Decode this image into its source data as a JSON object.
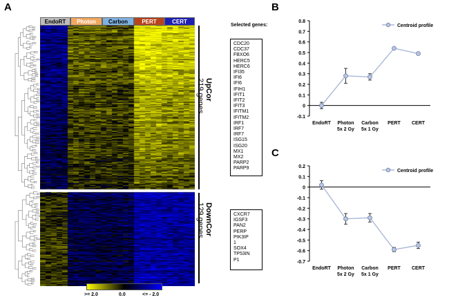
{
  "panels": {
    "a": "A",
    "b": "B",
    "c": "C"
  },
  "heatmap": {
    "groups": [
      {
        "label": "EndoRT",
        "color": "#bdbdbd",
        "text_color": "#000000"
      },
      {
        "label": "Photon",
        "color": "#f0a860",
        "text_color": "#ffffff"
      },
      {
        "label": "Carbon",
        "color": "#7fb2e0",
        "text_color": "#000000"
      },
      {
        "label": "PERT",
        "color": "#b8441c",
        "text_color": "#ffffff"
      },
      {
        "label": "CERT",
        "color": "#1f1fb0",
        "text_color": "#ffffff"
      }
    ],
    "selected_title": "Selected genes:",
    "upcor": {
      "name": "UpCor",
      "count": "219 genes",
      "genes": [
        "CDC20",
        "CDC37",
        "FBXO6",
        "HERC5",
        "HERC6",
        "IFI35",
        "IFI6",
        "IFI6",
        "IFIH1",
        "IFIT1",
        "IFIT2",
        "IFIT3",
        "IFITM1",
        "IFITM2",
        "IRF1",
        "IRF7",
        "IRF7",
        "ISG15",
        "ISG20",
        "MX1",
        "MX2",
        "PARP2",
        "PARP9"
      ]
    },
    "downcor": {
      "name": "DownCor",
      "count": "129 genes",
      "genes": [
        "CXCR7",
        "IGSF3",
        "PAN2",
        "PERP",
        "PIK3IP",
        "1",
        "SOX4",
        "TP53IN",
        "P1"
      ]
    },
    "legend": {
      "high": ">= 2.0",
      "mid": "0.0",
      "low": "<= - 2.0",
      "colors": {
        "high": "#ffff00",
        "mid": "#000000",
        "low": "#0000ff"
      }
    }
  },
  "chart_data": [
    {
      "type": "line",
      "panel": "B",
      "categories": [
        "EndoRT",
        "Photon 5x 2 Gy",
        "Carbon 5x 1 Gy",
        "PERT",
        "CERT"
      ],
      "category_lines": [
        [
          "EndoRT"
        ],
        [
          "Photon",
          "5x 2 Gy"
        ],
        [
          "Carbon",
          "5x 1 Gy"
        ],
        [
          "PERT"
        ],
        [
          "CERT"
        ]
      ],
      "series": [
        {
          "name": "Centroid profile",
          "values": [
            0.0,
            0.28,
            0.27,
            0.54,
            0.49
          ],
          "errors": [
            0.03,
            0.07,
            0.03,
            0.01,
            0.01
          ]
        }
      ],
      "ylim": [
        -0.1,
        0.8
      ],
      "yticks": [
        "-0.1",
        "0",
        "0.1",
        "0.2",
        "0.3",
        "0.4",
        "0.5",
        "0.6",
        "0.7",
        "0.8"
      ],
      "legend": "top-right",
      "colors": {
        "line": "#a9b8d6",
        "marker": "#b9c6e0",
        "marker_edge": "#6d7fa8"
      }
    },
    {
      "type": "line",
      "panel": "C",
      "categories": [
        "EndoRT",
        "Photon 5x 2 Gy",
        "Carbon 5x 1 Gy",
        "PERT",
        "CERT"
      ],
      "category_lines": [
        [
          "EndoRT"
        ],
        [
          "Photon",
          "5x 2 Gy"
        ],
        [
          "Carbon",
          "5x 1 Gy"
        ],
        [
          "PERT"
        ],
        [
          "CERT"
        ]
      ],
      "series": [
        {
          "name": "Centroid profile",
          "values": [
            0.02,
            -0.3,
            -0.29,
            -0.59,
            -0.55
          ],
          "errors": [
            0.04,
            0.05,
            0.04,
            0.02,
            0.03
          ]
        }
      ],
      "ylim": [
        -0.7,
        0.2
      ],
      "yticks": [
        "-0.7",
        "-0.6",
        "-0.5",
        "-0.4",
        "-0.3",
        "-0.2",
        "-0.1",
        "0",
        "0.1",
        "0.2"
      ],
      "legend": "top-right",
      "colors": {
        "line": "#a9b8d6",
        "marker": "#b9c6e0",
        "marker_edge": "#6d7fa8"
      }
    }
  ]
}
